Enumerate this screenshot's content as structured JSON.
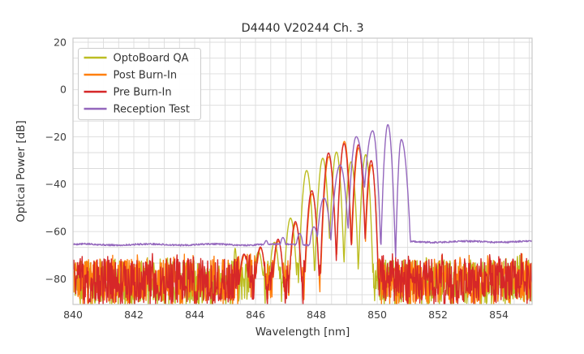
{
  "chart_data": {
    "type": "line",
    "title": "D4440 V20244 Ch. 3",
    "xlabel": "Wavelength [nm]",
    "ylabel": "Optical Power [dB]",
    "xlim": [
      840,
      855.09
    ],
    "ylim": [
      -90.8,
      21.72
    ],
    "xticks": [
      840,
      842,
      844,
      846,
      848,
      850,
      852,
      854
    ],
    "yticks": [
      20,
      0,
      -20,
      -40,
      -60,
      -80
    ],
    "grid": {
      "x_step_nm": 0.5,
      "y_step_db": 6.6667,
      "color": "#dcdcdc",
      "on": true
    },
    "legend_position": "upper-left",
    "mode_format": [
      "center_nm",
      "peak_db",
      "steepness_left_db_per_nm2",
      "steepness_right_db_per_nm2"
    ],
    "series": [
      {
        "name": "OptoBoard QA",
        "color": "#bcbd22",
        "noise_band": {
          "floor_top_db": -72.0,
          "floor_bottom_db": -91,
          "range_nm": [
            840,
            855.09
          ]
        },
        "modes": [
          [
            845.33,
            -67.0,
            4000,
            4000
          ],
          [
            846.1,
            -68.5,
            520,
            520
          ],
          [
            846.62,
            -64.5,
            560,
            560
          ],
          [
            847.15,
            -54.3,
            600,
            600
          ],
          [
            847.68,
            -34.2,
            650,
            650
          ],
          [
            848.21,
            -29.0,
            700,
            700
          ],
          [
            848.66,
            -26.4,
            750,
            780
          ],
          [
            849.14,
            -30.5,
            800,
            820
          ],
          [
            849.62,
            -27.5,
            850,
            900
          ]
        ]
      },
      {
        "name": "Post Burn-In",
        "color": "#ff7f0e",
        "noise_band": {
          "floor_top_db": -71.6,
          "floor_bottom_db": -91,
          "range_nm": [
            840,
            855.09
          ]
        },
        "modes": [
          [
            845.64,
            -69.8,
            500,
            500
          ],
          [
            846.17,
            -67.0,
            520,
            520
          ],
          [
            846.75,
            -64.0,
            560,
            560
          ],
          [
            847.32,
            -56.6,
            600,
            600
          ],
          [
            847.86,
            -44.0,
            650,
            650
          ],
          [
            848.41,
            -28.3,
            700,
            700
          ],
          [
            848.92,
            -21.9,
            760,
            800
          ],
          [
            849.39,
            -24.6,
            800,
            820
          ],
          [
            849.81,
            -31.8,
            850,
            900
          ]
        ]
      },
      {
        "name": "Pre Burn-In",
        "color": "#d62728",
        "noise_band": {
          "floor_top_db": -71.2,
          "floor_bottom_db": -91,
          "range_nm": [
            840,
            855.09
          ]
        },
        "modes": [
          [
            845.62,
            -69.5,
            500,
            500
          ],
          [
            846.16,
            -66.5,
            520,
            520
          ],
          [
            846.74,
            -63.2,
            560,
            560
          ],
          [
            847.31,
            -55.8,
            600,
            600
          ],
          [
            847.85,
            -42.7,
            650,
            650
          ],
          [
            848.4,
            -26.8,
            700,
            700
          ],
          [
            848.91,
            -22.8,
            760,
            800
          ],
          [
            849.38,
            -23.3,
            800,
            820
          ],
          [
            849.8,
            -30.0,
            850,
            900
          ]
        ]
      },
      {
        "name": "Reception Test",
        "color": "#9467bd",
        "flat_floor": {
          "left_db": -65.5,
          "right_db": -64.3,
          "gap_nm": [
            849.95,
            851.03
          ]
        },
        "modes": [
          [
            846.35,
            -63.8,
            400,
            400
          ],
          [
            846.9,
            -62.5,
            400,
            400
          ],
          [
            847.45,
            -60.8,
            400,
            400
          ],
          [
            847.92,
            -58.0,
            380,
            380
          ],
          [
            848.25,
            -45.8,
            350,
            350
          ],
          [
            848.78,
            -31.9,
            350,
            400
          ],
          [
            849.31,
            -19.9,
            550,
            300
          ],
          [
            849.85,
            -17.4,
            340,
            700
          ],
          [
            850.35,
            -14.8,
            1000,
            900
          ],
          [
            850.79,
            -21.1,
            1450,
            480
          ]
        ]
      }
    ]
  }
}
